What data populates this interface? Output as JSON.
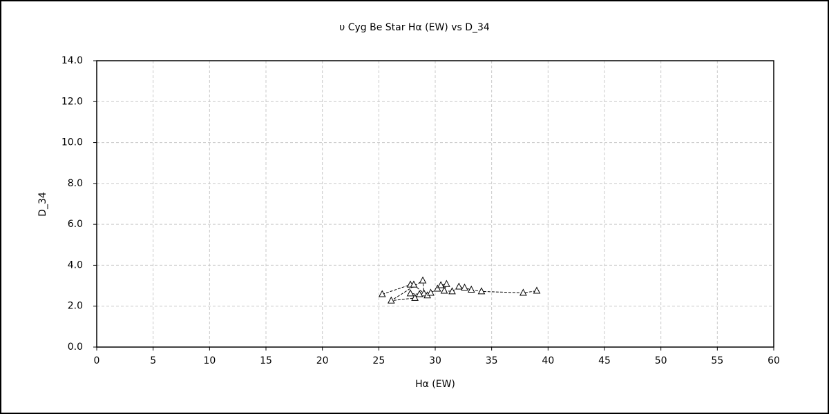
{
  "chart_data": {
    "type": "line",
    "title": "υ Cyg   Be Star   Hα (EW) vs D_34",
    "x_label": "Hα (EW)",
    "y_label": "D_34",
    "x": [
      25.3,
      27.8,
      28.1,
      29.0,
      28.9,
      26.1,
      28.2,
      27.8,
      28.6,
      29.3,
      29.6,
      30.2,
      30.5,
      31.0,
      30.8,
      31.5,
      32.1,
      32.6,
      33.2,
      34.1,
      37.8,
      39.0
    ],
    "values": [
      2.58,
      3.05,
      3.05,
      2.62,
      3.25,
      2.27,
      2.4,
      2.62,
      2.58,
      2.52,
      2.65,
      2.85,
      3.02,
      3.08,
      2.75,
      2.72,
      2.95,
      2.9,
      2.8,
      2.72,
      2.65,
      2.75
    ],
    "color": "#000000",
    "marker": "triangle",
    "line_style": "dashed",
    "xlim": [
      0,
      60
    ],
    "xticks": [
      0,
      5,
      10,
      15,
      20,
      25,
      30,
      35,
      40,
      45,
      50,
      55,
      60
    ],
    "ylim": [
      0,
      14
    ],
    "yticks": [
      {
        "value": 0,
        "label": "0.0"
      },
      {
        "value": 2,
        "label": "2.0"
      },
      {
        "value": 4,
        "label": "4.0"
      },
      {
        "value": 6,
        "label": "6.0"
      },
      {
        "value": 8,
        "label": "8.0"
      },
      {
        "value": 10,
        "label": "10.0"
      },
      {
        "value": 12,
        "label": "12.0"
      },
      {
        "value": 14,
        "label": "14.0"
      }
    ],
    "grid": true
  }
}
